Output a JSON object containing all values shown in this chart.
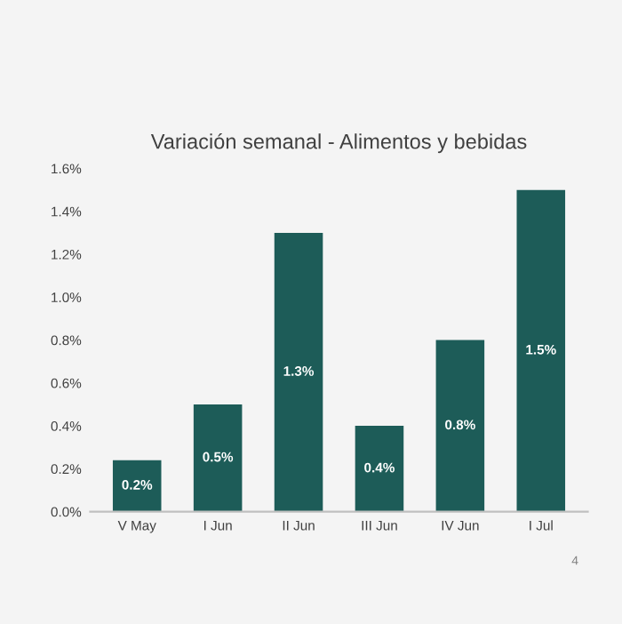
{
  "chart_data": {
    "type": "bar",
    "title": "Variación semanal - Alimentos y bebidas",
    "categories": [
      "V May",
      "I Jun",
      "II Jun",
      "III Jun",
      "IV Jun",
      "I Jul"
    ],
    "values": [
      0.24,
      0.5,
      1.3,
      0.4,
      0.8,
      1.5
    ],
    "value_labels": [
      "0.2%",
      "0.5%",
      "1.3%",
      "0.4%",
      "0.8%",
      "1.5%"
    ],
    "color": "#1d5c58",
    "ylim": [
      0,
      1.6
    ],
    "yticks": [
      {
        "value": 0,
        "label": "0.0%"
      },
      {
        "value": 0.2,
        "label": "0.2%"
      },
      {
        "value": 0.4,
        "label": "0.4%"
      },
      {
        "value": 0.6,
        "label": "0.6%"
      },
      {
        "value": 0.8,
        "label": "0.8%"
      },
      {
        "value": 1.0,
        "label": "1.0%"
      },
      {
        "value": 1.2,
        "label": "1.2%"
      },
      {
        "value": 1.4,
        "label": "1.4%"
      },
      {
        "value": 1.6,
        "label": "1.6%"
      }
    ],
    "annotations": [
      "4"
    ],
    "grid": false,
    "legend": false
  }
}
